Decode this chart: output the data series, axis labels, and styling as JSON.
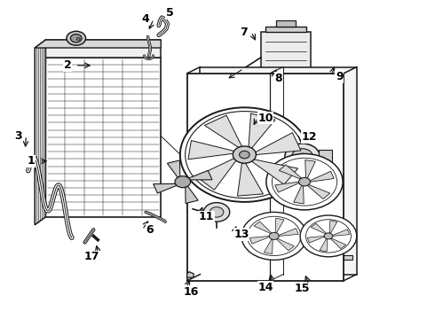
{
  "bg_color": "#ffffff",
  "line_color": "#1a1a1a",
  "fig_width": 4.9,
  "fig_height": 3.6,
  "dpi": 100,
  "label_fontsize": 9,
  "label_positions": {
    "1": [
      0.072,
      0.495,
      0.115,
      0.495
    ],
    "2": [
      0.155,
      0.795,
      0.215,
      0.795
    ],
    "3": [
      0.042,
      0.575,
      0.058,
      0.53
    ],
    "4": [
      0.335,
      0.94,
      0.34,
      0.9
    ],
    "5": [
      0.39,
      0.96,
      0.39,
      0.96
    ],
    "6": [
      0.345,
      0.28,
      0.345,
      0.315
    ],
    "7": [
      0.56,
      0.9,
      0.59,
      0.865
    ],
    "8": [
      0.64,
      0.755,
      0.64,
      0.79
    ],
    "9": [
      0.78,
      0.76,
      0.77,
      0.8
    ],
    "10": [
      0.61,
      0.63,
      0.58,
      0.6
    ],
    "11": [
      0.475,
      0.32,
      0.468,
      0.36
    ],
    "12": [
      0.71,
      0.57,
      0.69,
      0.545
    ],
    "13": [
      0.555,
      0.265,
      0.545,
      0.3
    ],
    "14": [
      0.61,
      0.1,
      0.62,
      0.15
    ],
    "15": [
      0.695,
      0.095,
      0.7,
      0.145
    ],
    "16": [
      0.44,
      0.085,
      0.44,
      0.13
    ],
    "17": [
      0.21,
      0.195,
      0.22,
      0.24
    ]
  }
}
